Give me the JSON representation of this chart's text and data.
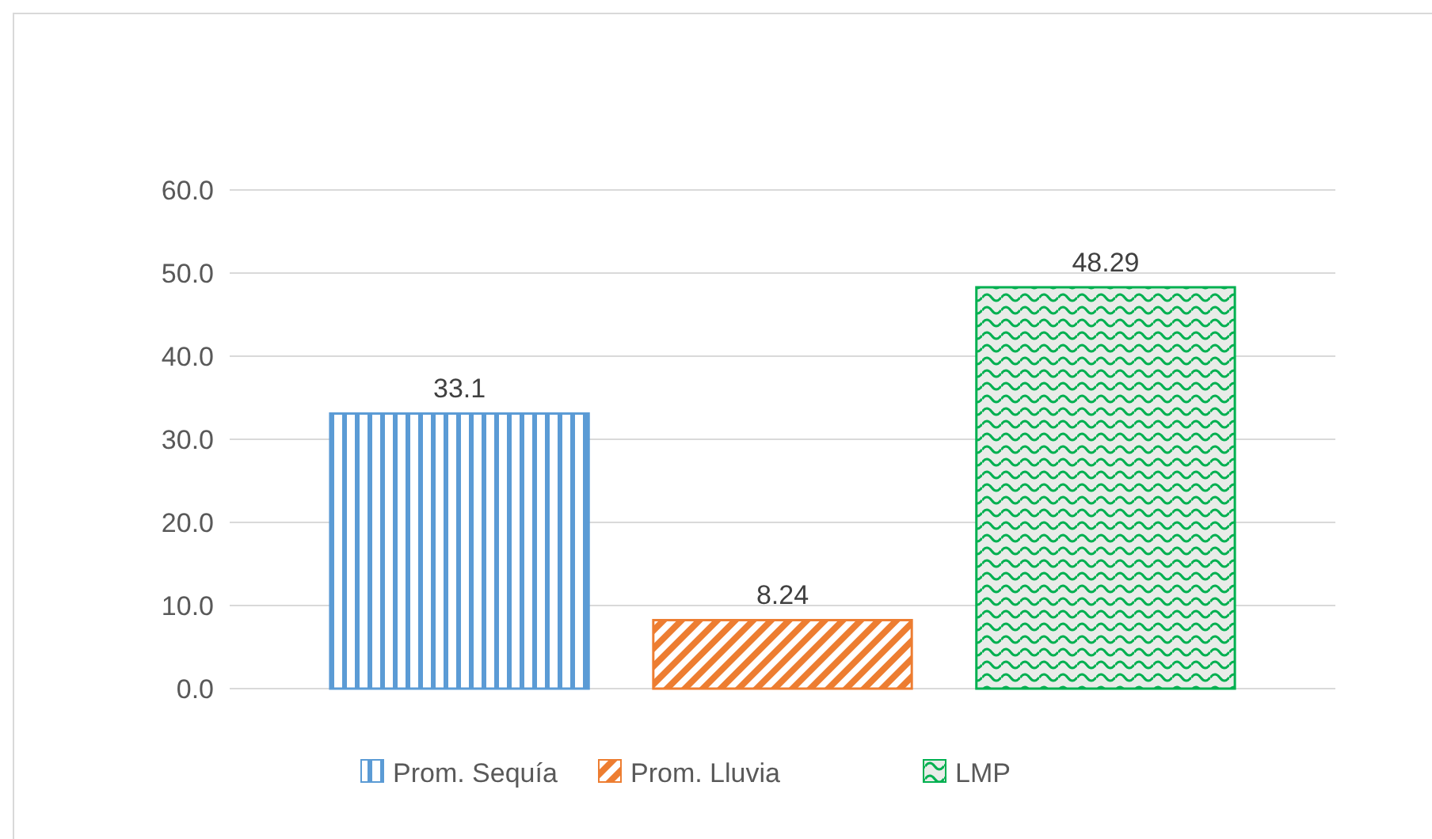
{
  "chart_data": {
    "type": "bar",
    "categories": [
      null
    ],
    "series": [
      {
        "name": "Prom. Sequía",
        "color": "#5b9bd5",
        "values": [
          33.1
        ]
      },
      {
        "name": "Prom. Lluvia",
        "color": "#ed7d31",
        "values": [
          8.24
        ]
      },
      {
        "name": "LMP",
        "color": "#00b050",
        "values": [
          48.29
        ]
      }
    ],
    "ylim": [
      0,
      60
    ],
    "yticks": [
      {
        "value": 0,
        "label": "0.0"
      },
      {
        "value": 10,
        "label": "10.0"
      },
      {
        "value": 20,
        "label": "20.0"
      },
      {
        "value": 30,
        "label": "30.0"
      },
      {
        "value": 40,
        "label": "40.0"
      },
      {
        "value": 50,
        "label": "50.0"
      },
      {
        "value": 60,
        "label": "60.0"
      }
    ],
    "grid": "y",
    "legend": "bottom",
    "data_labels": true
  }
}
